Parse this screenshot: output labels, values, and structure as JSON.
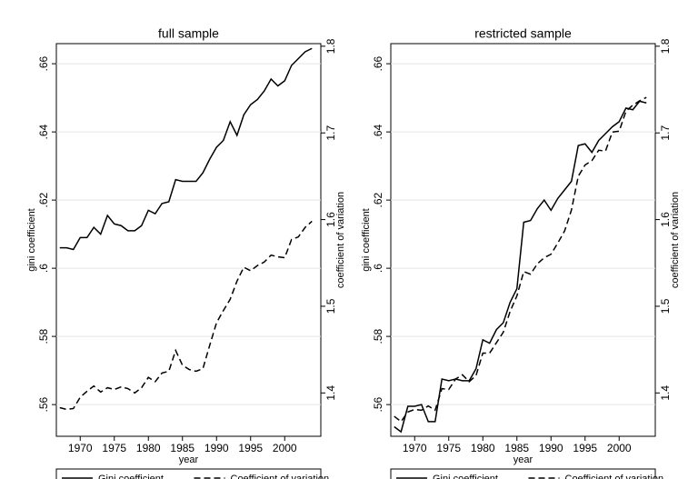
{
  "chart_data": [
    {
      "type": "line",
      "title": "full sample",
      "x_label": "year",
      "y_label": "gini coefficient",
      "y2_label": "coefficient of variation",
      "x": [
        1967,
        1968,
        1969,
        1970,
        1971,
        1972,
        1973,
        1974,
        1975,
        1976,
        1977,
        1978,
        1979,
        1980,
        1981,
        1982,
        1983,
        1984,
        1985,
        1986,
        1987,
        1988,
        1989,
        1990,
        1991,
        1992,
        1993,
        1994,
        1995,
        1996,
        1997,
        1998,
        1999,
        2000,
        2001,
        2002,
        2003,
        2004
      ],
      "series": [
        {
          "name": "Gini coefficient",
          "color": "#000000",
          "line_style": "solid",
          "values": [
            0.606,
            0.606,
            0.6055,
            0.609,
            0.609,
            0.612,
            0.61,
            0.6155,
            0.613,
            0.6125,
            0.611,
            0.611,
            0.6125,
            0.617,
            0.616,
            0.619,
            0.6195,
            0.626,
            0.6255,
            0.6255,
            0.6255,
            0.628,
            0.632,
            0.6355,
            0.6375,
            0.643,
            0.639,
            0.645,
            0.648,
            0.6495,
            0.652,
            0.6555,
            0.6535,
            0.655,
            0.6595,
            0.6615,
            0.6635,
            0.6645
          ]
        },
        {
          "name": "Coefficient of variation",
          "color": "#000000",
          "line_style": "dashed",
          "axis": "y2",
          "values": [
            1.383,
            1.381,
            1.382,
            1.395,
            1.402,
            1.408,
            1.401,
            1.406,
            1.404,
            1.407,
            1.405,
            1.4,
            1.406,
            1.418,
            1.413,
            1.423,
            1.425,
            1.449,
            1.432,
            1.427,
            1.425,
            1.428,
            1.455,
            1.481,
            1.495,
            1.508,
            1.529,
            1.545,
            1.541,
            1.547,
            1.551,
            1.559,
            1.557,
            1.556,
            1.577,
            1.58,
            1.591,
            1.598
          ]
        }
      ],
      "xlim": [
        1966.5,
        2005.3
      ],
      "xticks": [
        1970,
        1975,
        1980,
        1985,
        1990,
        1995,
        2000
      ],
      "ylim": [
        0.5507,
        0.6659
      ],
      "yticks": [
        {
          "value": 0.56,
          "label": ".56"
        },
        {
          "value": 0.58,
          "label": ".58"
        },
        {
          "value": 0.6,
          "label": ".6"
        },
        {
          "value": 0.62,
          "label": ".62"
        },
        {
          "value": 0.64,
          "label": ".64"
        },
        {
          "value": 0.66,
          "label": ".66"
        }
      ],
      "y2lim": [
        1.35,
        1.803
      ],
      "y2ticks": [
        1.4,
        1.5,
        1.6,
        1.7,
        1.8
      ],
      "grid": true,
      "legend": "bottom"
    },
    {
      "type": "line",
      "title": "restricted sample",
      "x_label": "year",
      "y_label": "gini coefficient",
      "y2_label": "coefficient of variation",
      "x": [
        1967,
        1968,
        1969,
        1970,
        1971,
        1972,
        1973,
        1974,
        1975,
        1976,
        1977,
        1978,
        1979,
        1980,
        1981,
        1982,
        1983,
        1984,
        1985,
        1986,
        1987,
        1988,
        1989,
        1990,
        1991,
        1992,
        1993,
        1994,
        1995,
        1996,
        1997,
        1998,
        1999,
        2000,
        2001,
        2002,
        2003,
        2004
      ],
      "series": [
        {
          "name": "Gini coefficient",
          "color": "#000000",
          "line_style": "solid",
          "values": [
            0.5535,
            0.552,
            0.5595,
            0.5595,
            0.56,
            0.555,
            0.555,
            0.5675,
            0.567,
            0.5675,
            0.567,
            0.567,
            0.5705,
            0.579,
            0.578,
            0.582,
            0.584,
            0.59,
            0.594,
            0.6135,
            0.614,
            0.6175,
            0.62,
            0.617,
            0.6205,
            0.623,
            0.6255,
            0.636,
            0.6365,
            0.634,
            0.6375,
            0.6395,
            0.6415,
            0.643,
            0.647,
            0.6465,
            0.649,
            0.6485
          ]
        },
        {
          "name": "Coefficient of variation",
          "color": "#000000",
          "line_style": "dashed",
          "axis": "y2",
          "values": [
            1.373,
            1.367,
            1.378,
            1.381,
            1.38,
            1.385,
            1.38,
            1.405,
            1.404,
            1.416,
            1.421,
            1.413,
            1.42,
            1.446,
            1.446,
            1.458,
            1.47,
            1.494,
            1.512,
            1.54,
            1.537,
            1.549,
            1.556,
            1.56,
            1.573,
            1.587,
            1.611,
            1.65,
            1.663,
            1.668,
            1.68,
            1.679,
            1.701,
            1.702,
            1.725,
            1.732,
            1.737,
            1.741
          ]
        }
      ],
      "xlim": [
        1966.5,
        2005.3
      ],
      "xticks": [
        1970,
        1975,
        1980,
        1985,
        1990,
        1995,
        2000
      ],
      "ylim": [
        0.5507,
        0.6659
      ],
      "yticks": [
        {
          "value": 0.56,
          "label": ".56"
        },
        {
          "value": 0.58,
          "label": ".58"
        },
        {
          "value": 0.6,
          "label": ".6"
        },
        {
          "value": 0.62,
          "label": ".62"
        },
        {
          "value": 0.64,
          "label": ".64"
        },
        {
          "value": 0.66,
          "label": ".66"
        }
      ],
      "y2lim": [
        1.35,
        1.803
      ],
      "y2ticks": [
        1.4,
        1.5,
        1.6,
        1.7,
        1.8
      ],
      "grid": true,
      "legend": "bottom"
    }
  ]
}
